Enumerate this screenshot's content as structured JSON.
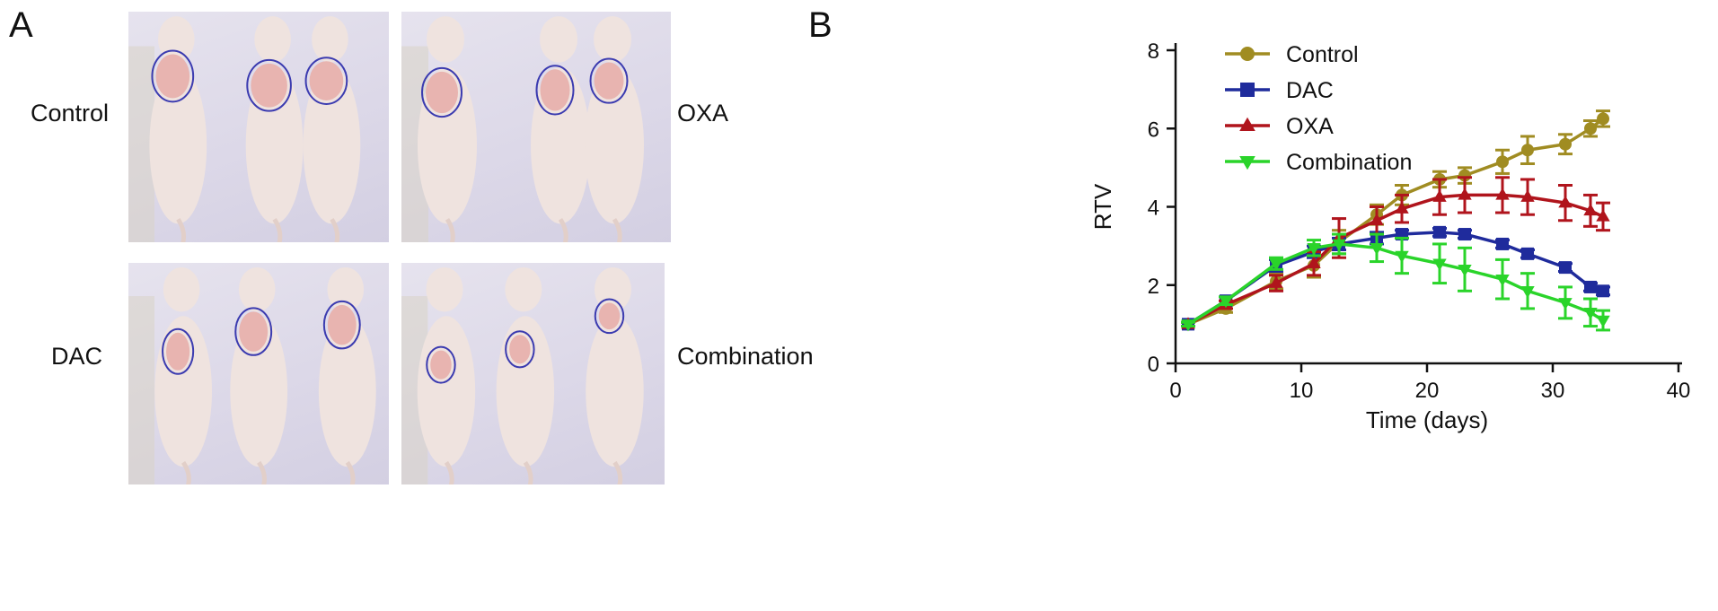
{
  "panel_a": {
    "letter": "A",
    "groups": [
      {
        "label": "Control",
        "mice": 3
      },
      {
        "label": "OXA",
        "mice": 3
      },
      {
        "label": "DAC",
        "mice": 3
      },
      {
        "label": "Combination",
        "mice": 3
      }
    ],
    "colors": {
      "tumor_outline": "#3b3bb0",
      "mouse_body": "#efe3df",
      "tumor": "#e8b4b0",
      "ruler": "#d9d4c7"
    }
  },
  "panel_b": {
    "letter": "B"
  },
  "chart_data": {
    "type": "line",
    "xlabel": "Time (days)",
    "ylabel": "RTV",
    "xlim": [
      0,
      40
    ],
    "ylim": [
      0,
      8
    ],
    "xticks": [
      0,
      10,
      20,
      30,
      40
    ],
    "yticks": [
      0,
      2,
      4,
      6,
      8
    ],
    "grid": false,
    "legend_position": "top-left",
    "series": [
      {
        "name": "Control",
        "color": "#a08c22",
        "marker": "circle",
        "x": [
          1,
          4,
          8,
          11,
          13,
          16,
          18,
          21,
          23,
          26,
          28,
          31,
          33,
          34
        ],
        "y": [
          1.0,
          1.4,
          2.1,
          2.5,
          3.1,
          3.8,
          4.3,
          4.7,
          4.8,
          5.15,
          5.45,
          5.6,
          6.0,
          6.25
        ],
        "err": [
          0.05,
          0.1,
          0.2,
          0.3,
          0.3,
          0.25,
          0.25,
          0.2,
          0.2,
          0.3,
          0.35,
          0.25,
          0.2,
          0.2
        ]
      },
      {
        "name": "DAC",
        "color": "#1f2b9c",
        "marker": "square",
        "x": [
          1,
          4,
          8,
          11,
          13,
          16,
          18,
          21,
          23,
          26,
          28,
          31,
          33,
          34
        ],
        "y": [
          1.0,
          1.6,
          2.5,
          2.85,
          3.05,
          3.2,
          3.3,
          3.35,
          3.3,
          3.05,
          2.8,
          2.45,
          1.95,
          1.85
        ],
        "err": [
          0.05,
          0.1,
          0.15,
          0.15,
          0.15,
          0.15,
          0.1,
          0.1,
          0.1,
          0.1,
          0.1,
          0.1,
          0.1,
          0.1
        ]
      },
      {
        "name": "OXA",
        "color": "#b0141c",
        "marker": "triangle-up",
        "x": [
          1,
          4,
          8,
          11,
          13,
          16,
          18,
          21,
          23,
          26,
          28,
          31,
          33,
          34
        ],
        "y": [
          1.0,
          1.5,
          2.05,
          2.55,
          3.2,
          3.65,
          3.95,
          4.25,
          4.3,
          4.3,
          4.25,
          4.1,
          3.9,
          3.75
        ],
        "err": [
          0.05,
          0.1,
          0.2,
          0.3,
          0.5,
          0.35,
          0.35,
          0.45,
          0.45,
          0.45,
          0.45,
          0.45,
          0.4,
          0.35
        ]
      },
      {
        "name": "Combination",
        "color": "#2ad42a",
        "marker": "triangle-down",
        "x": [
          1,
          4,
          8,
          11,
          13,
          16,
          18,
          21,
          23,
          26,
          28,
          31,
          33,
          34
        ],
        "y": [
          1.0,
          1.6,
          2.55,
          2.95,
          3.05,
          2.95,
          2.75,
          2.55,
          2.4,
          2.15,
          1.85,
          1.55,
          1.3,
          1.1
        ],
        "err": [
          0.05,
          0.1,
          0.15,
          0.2,
          0.25,
          0.35,
          0.45,
          0.5,
          0.55,
          0.5,
          0.45,
          0.4,
          0.35,
          0.25
        ]
      }
    ]
  }
}
